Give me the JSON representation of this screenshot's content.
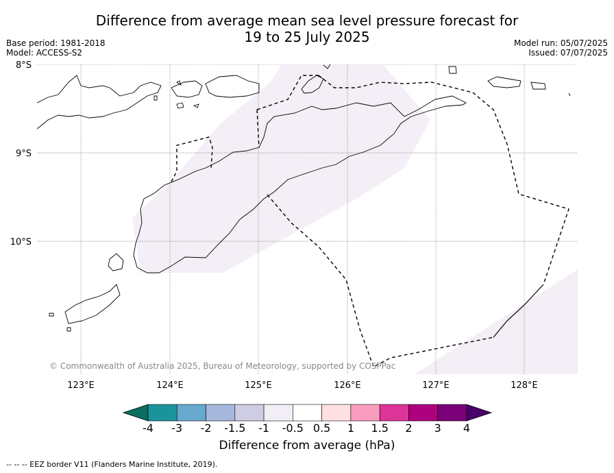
{
  "title": {
    "line1": "Difference from average mean sea level pressure forecast for",
    "line2": "19 to 25 July 2025"
  },
  "meta": {
    "base_period": "Base period: 1981-2018",
    "model": "Model: ACCESS-S2",
    "model_run": "Model run: 05/07/2025",
    "issued": "Issued: 07/07/2025"
  },
  "map": {
    "lat_labels": [
      "8°S",
      "9°S",
      "10°S"
    ],
    "lon_labels": [
      "123°E",
      "124°E",
      "125°E",
      "126°E",
      "127°E",
      "128°E"
    ],
    "copyright": "© Commonwealth of Australia 2025, Bureau of Meteorology, supported by COSPPac",
    "anomaly_fill_color": "#f4eef6",
    "coastline_color": "#000000",
    "eez_color": "#000000"
  },
  "colorbar": {
    "ticks": [
      "-4",
      "-3",
      "-2",
      "-1.5",
      "-1",
      "-0.5",
      "0.5",
      "1",
      "1.5",
      "2",
      "3",
      "4"
    ],
    "colors": [
      "#1a9399",
      "#67a9cf",
      "#a6b9dc",
      "#cfcde4",
      "#f2eef6",
      "#ffffff",
      "#fee0e0",
      "#f99cbf",
      "#dd3497",
      "#ae017e",
      "#7a0177"
    ],
    "low_extend_color": "#0c6e5e",
    "high_extend_color": "#49006a",
    "label": "Difference from average (hPa)"
  },
  "footnote": "--  --  -- EEZ border V11 (Flanders Marine Institute, 2019)."
}
